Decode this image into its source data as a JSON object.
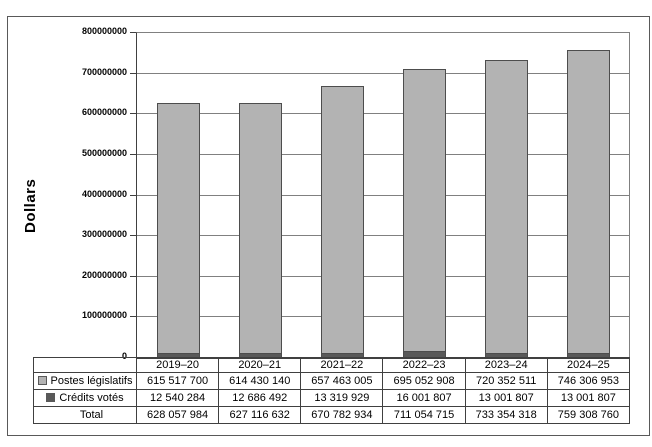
{
  "chart_data": {
    "type": "bar",
    "stacked": true,
    "title": "",
    "ylabel": "Dollars",
    "xlabel": "",
    "categories": [
      "2019–20",
      "2020–21",
      "2021–22",
      "2022–23",
      "2023–24",
      "2024–25"
    ],
    "series": [
      {
        "name": "Postes législatifs",
        "color": "#b3b3b3",
        "values": [
          615517700,
          614430140,
          657463005,
          695052908,
          720352511,
          746306953
        ]
      },
      {
        "name": "Crédits votés",
        "color": "#595959",
        "values": [
          12540284,
          12686492,
          13319929,
          16001807,
          13001807,
          13001807
        ]
      }
    ],
    "totals": {
      "label": "Total",
      "values": [
        628057984,
        627116632,
        670782934,
        711054715,
        733354318,
        759308760
      ]
    },
    "ylim": [
      0,
      800000000
    ],
    "ytick_labels": [
      "0",
      "100000000",
      "200000000",
      "300000000",
      "400000000",
      "500000000",
      "600000000",
      "700000000",
      "800000000"
    ],
    "grid": true,
    "legend_position": "table-rows-left"
  },
  "table": {
    "rows": [
      {
        "label": "Postes législatifs",
        "marker": "#b3b3b3",
        "values": [
          "615 517 700",
          "614 430 140",
          "657 463 005",
          "695 052 908",
          "720 352 511",
          "746 306 953"
        ]
      },
      {
        "label": "Crédits votés",
        "marker": "#595959",
        "values": [
          "12 540 284",
          "12 686 492",
          "13 319 929",
          "16 001 807",
          "13 001 807",
          "13 001 807"
        ]
      },
      {
        "label": "Total",
        "marker": null,
        "values": [
          "628 057 984",
          "627 116 632",
          "670 782 934",
          "711 054 715",
          "733 354 318",
          "759 308 760"
        ]
      }
    ]
  },
  "colors": {
    "bar_light": "#b3b3b3",
    "bar_dark": "#595959",
    "bar_border": "#4d4d4d",
    "gridline": "#808080",
    "axis": "#404040",
    "table_border": "#404040",
    "figure_border": "#595959",
    "text": "#000000"
  }
}
